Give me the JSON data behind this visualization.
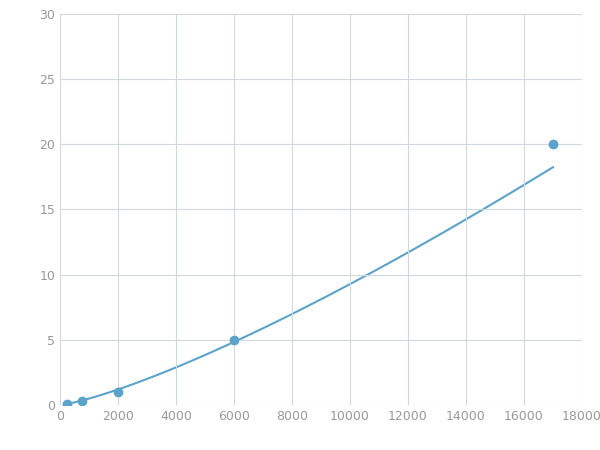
{
  "x_data": [
    250,
    750,
    2000,
    6000,
    17000
  ],
  "y_data": [
    0.1,
    0.3,
    1.0,
    5.0,
    20.0
  ],
  "line_color": "#5ba3c9",
  "marker_color": "#5ba3c9",
  "marker_size": 6,
  "xlim": [
    0,
    18000
  ],
  "ylim": [
    0,
    30
  ],
  "xticks": [
    0,
    2000,
    4000,
    6000,
    8000,
    10000,
    12000,
    14000,
    16000,
    18000
  ],
  "yticks": [
    0,
    5,
    10,
    15,
    20,
    25,
    30
  ],
  "grid_color": "#d0d8e0",
  "background_color": "#ffffff",
  "tick_color": "#999999",
  "figsize": [
    6.0,
    4.5
  ],
  "dpi": 100
}
